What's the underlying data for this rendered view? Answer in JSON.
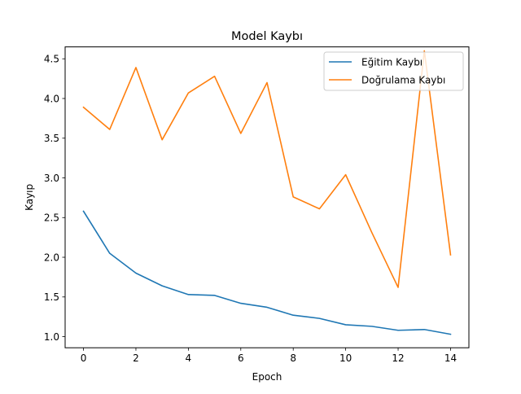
{
  "chart_data": {
    "type": "line",
    "title": "Model Kaybı",
    "xlabel": "Epoch",
    "ylabel": "Kayıp",
    "xlim": [
      -0.7,
      14.7
    ],
    "ylim": [
      0.86,
      4.65
    ],
    "xticks": [
      0,
      2,
      4,
      6,
      8,
      10,
      12,
      14
    ],
    "xtick_labels": [
      "0",
      "2",
      "4",
      "6",
      "8",
      "10",
      "12",
      "14"
    ],
    "yticks": [
      1.0,
      1.5,
      2.0,
      2.5,
      3.0,
      3.5,
      4.0,
      4.5
    ],
    "ytick_labels": [
      "1.0",
      "1.5",
      "2.0",
      "2.5",
      "3.0",
      "3.5",
      "4.0",
      "4.5"
    ],
    "grid": false,
    "legend_position": "top-right",
    "x": [
      0,
      1,
      2,
      3,
      4,
      5,
      6,
      7,
      8,
      9,
      10,
      11,
      12,
      13,
      14
    ],
    "series": [
      {
        "name": "Eğitim Kaybı",
        "color": "#1f77b4",
        "values": [
          2.58,
          2.05,
          1.8,
          1.64,
          1.53,
          1.52,
          1.42,
          1.37,
          1.27,
          1.23,
          1.15,
          1.13,
          1.08,
          1.09,
          1.03
        ]
      },
      {
        "name": "Doğrulama Kaybı",
        "color": "#ff7f0e",
        "values": [
          3.89,
          3.61,
          4.39,
          3.48,
          4.07,
          4.28,
          3.56,
          4.2,
          2.76,
          2.61,
          3.04,
          2.31,
          1.62,
          4.6,
          2.03
        ]
      }
    ]
  }
}
